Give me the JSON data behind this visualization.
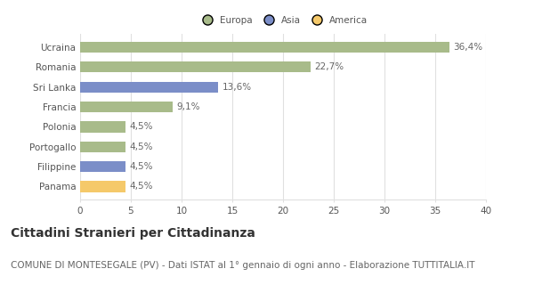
{
  "categories": [
    "Ucraina",
    "Romania",
    "Sri Lanka",
    "Francia",
    "Polonia",
    "Portogallo",
    "Filippine",
    "Panama"
  ],
  "values": [
    36.4,
    22.7,
    13.6,
    9.1,
    4.5,
    4.5,
    4.5,
    4.5
  ],
  "labels": [
    "36,4%",
    "22,7%",
    "13,6%",
    "9,1%",
    "4,5%",
    "4,5%",
    "4,5%",
    "4,5%"
  ],
  "colors": [
    "#a8bb8a",
    "#a8bb8a",
    "#7b8ec8",
    "#a8bb8a",
    "#a8bb8a",
    "#a8bb8a",
    "#7b8ec8",
    "#f5c96a"
  ],
  "legend_labels": [
    "Europa",
    "Asia",
    "America"
  ],
  "legend_colors": [
    "#a8bb8a",
    "#7b8ec8",
    "#f5c96a"
  ],
  "xlim": [
    0,
    40
  ],
  "xticks": [
    0,
    5,
    10,
    15,
    20,
    25,
    30,
    35,
    40
  ],
  "title": "Cittadini Stranieri per Cittadinanza",
  "subtitle": "COMUNE DI MONTESEGALE (PV) - Dati ISTAT al 1° gennaio di ogni anno - Elaborazione TUTTITALIA.IT",
  "title_fontsize": 10,
  "subtitle_fontsize": 7.5,
  "label_fontsize": 7.5,
  "tick_fontsize": 7.5,
  "bg_color": "#ffffff",
  "grid_color": "#e0e0e0",
  "bar_height": 0.55
}
